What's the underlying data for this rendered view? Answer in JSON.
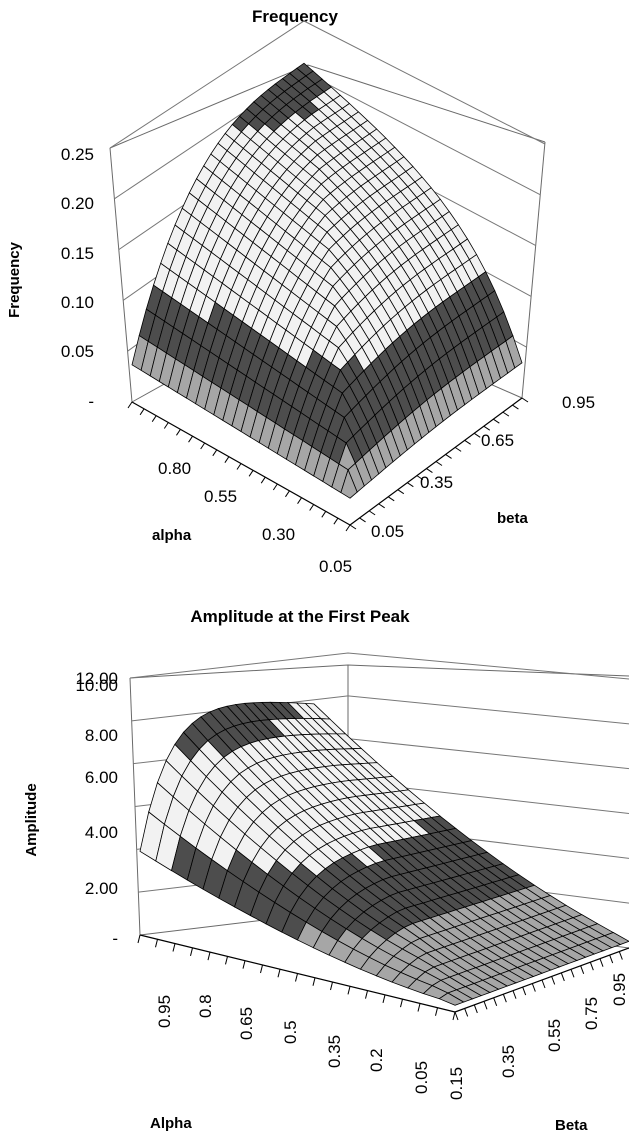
{
  "chart_data": [
    {
      "type": "surface",
      "title": "Frequency",
      "zlabel": "Frequency",
      "xlabel": "alpha",
      "ylabel": "beta",
      "z_ticks": [
        "-",
        "0.05",
        "0.10",
        "0.15",
        "0.20",
        "0.25"
      ],
      "alpha_ticks": [
        "0.80",
        "0.55",
        "0.30",
        "0.05"
      ],
      "beta_ticks": [
        "0.05",
        "0.35",
        "0.65",
        "0.95"
      ],
      "zlim": [
        0,
        0.25
      ],
      "alpha_range": [
        0.05,
        0.95
      ],
      "beta_range": [
        0.05,
        0.95
      ],
      "grid": true,
      "color_bands": [
        "#a6a6a6",
        "#4d4d4d",
        "#f2f2f2",
        "#f2f2f2",
        "#4d4d4d"
      ]
    },
    {
      "type": "surface",
      "title": "Amplitude at the First Peak",
      "zlabel": "Amplitude",
      "xlabel": "Alpha",
      "ylabel": "Beta",
      "z_ticks": [
        "-",
        "2.00",
        "4.00",
        "6.00",
        "8.00",
        "10.00",
        "12.00"
      ],
      "alpha_ticks": [
        "0.95",
        "0.8",
        "0.65",
        "0.5",
        "0.35",
        "0.2",
        "0.05"
      ],
      "beta_ticks": [
        "0.15",
        "0.35",
        "0.55",
        "0.75",
        "0.95"
      ],
      "zlim": [
        0,
        12
      ],
      "alpha_range": [
        0.05,
        0.95
      ],
      "beta_range": [
        0.05,
        0.95
      ],
      "grid": true,
      "color_bands": [
        "#a6a6a6",
        "#4d4d4d",
        "#f2f2f2",
        "#f2f2f2",
        "#4d4d4d",
        "#a6a6a6"
      ]
    }
  ]
}
